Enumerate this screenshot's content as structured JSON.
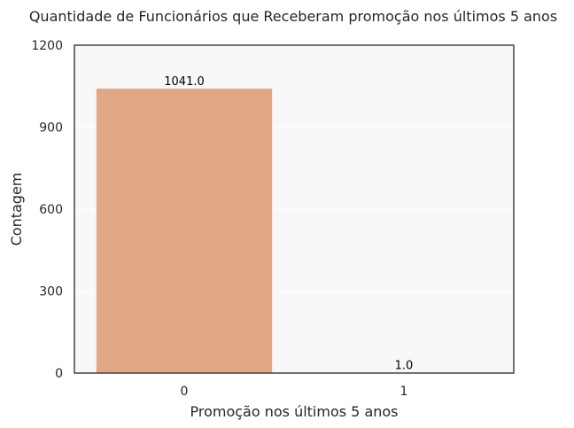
{
  "chart_data": {
    "type": "bar",
    "title": "Quantidade de Funcionários que Receberam promoção nos últimos 5 anos",
    "xlabel": "Promoção nos últimos 5 anos",
    "ylabel": "Contagem",
    "categories": [
      "0",
      "1"
    ],
    "values": [
      1041,
      1
    ],
    "value_labels": [
      "1041.0",
      "1.0"
    ],
    "ylim": [
      0,
      1200
    ],
    "yticks": [
      0,
      300,
      600,
      900,
      1200
    ],
    "ytick_labels": [
      "0",
      "300",
      "600",
      "900",
      "1200"
    ],
    "grid": true,
    "legend": "none",
    "colors": {
      "bar": "#E1A887",
      "plot_background": "#F8F8F8",
      "grid": "#FFFFFF",
      "axes_edge": "#444444",
      "text": "#262626"
    }
  }
}
